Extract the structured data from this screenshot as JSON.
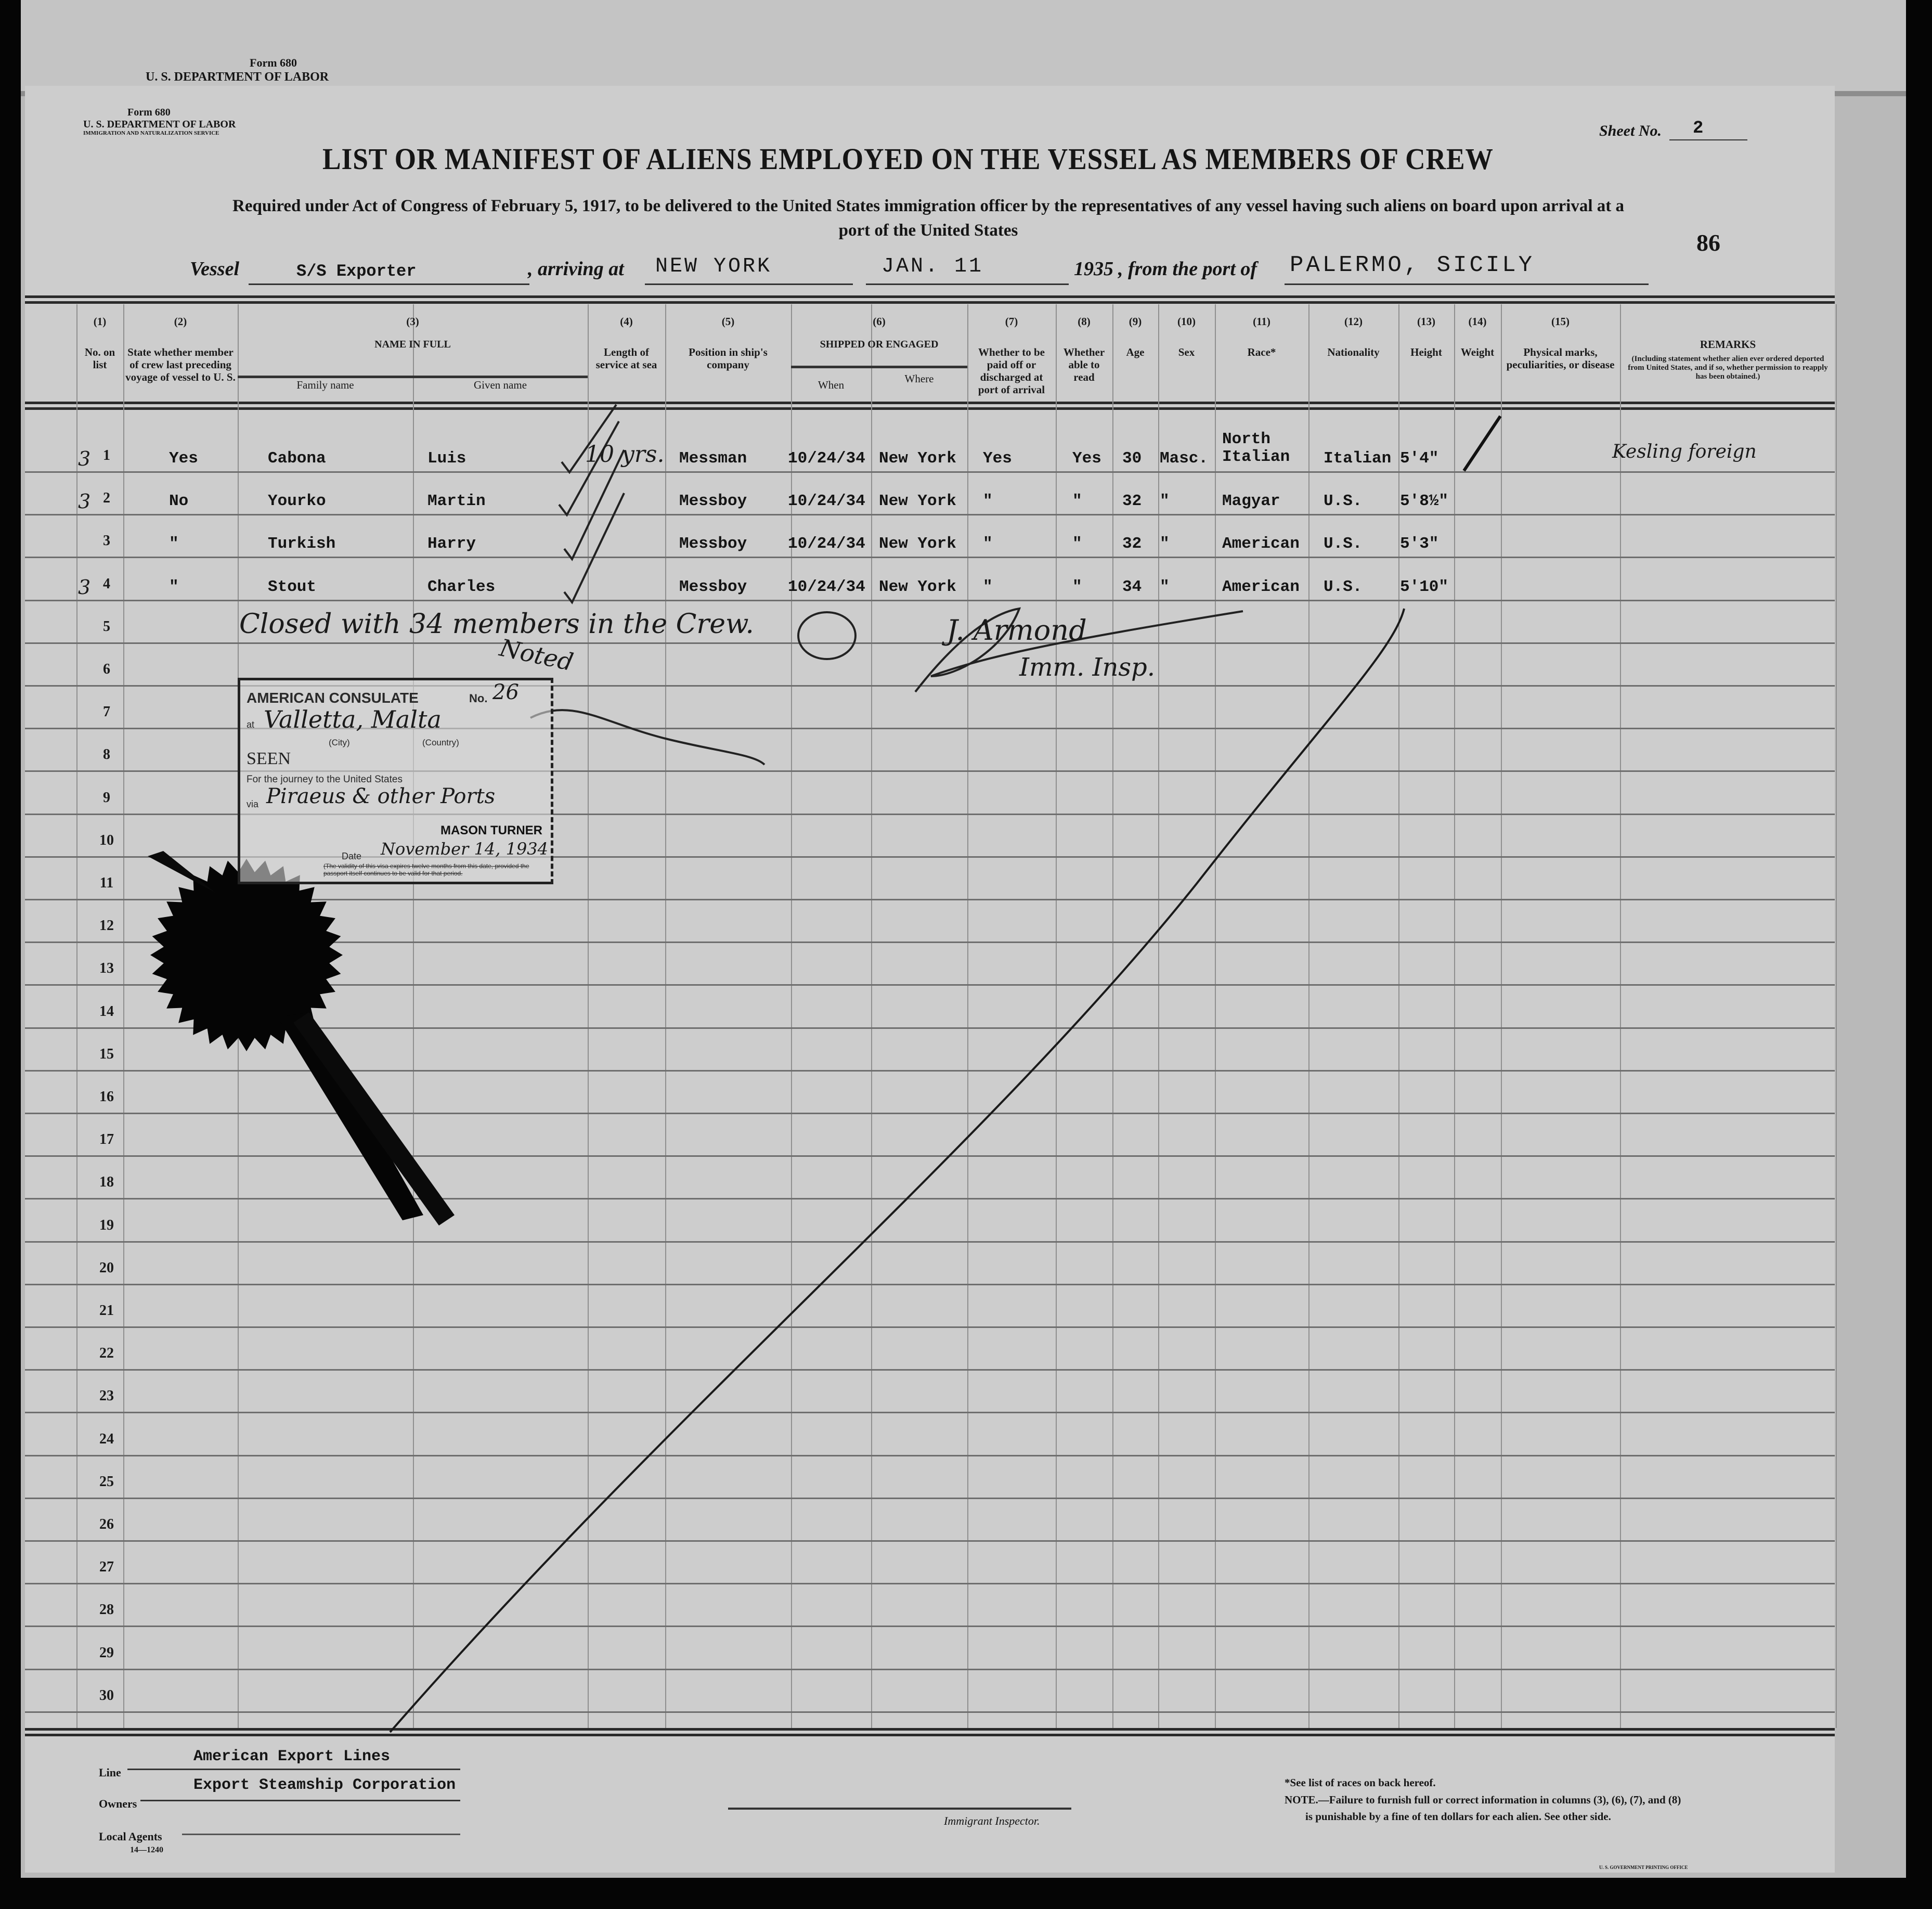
{
  "back_sheet": {
    "form": "Form 680",
    "department": "U. S. DEPARTMENT OF LABOR"
  },
  "form_header": {
    "form": "Form 680",
    "department": "U. S. DEPARTMENT OF LABOR",
    "service": "IMMIGRATION AND NATURALIZATION SERVICE",
    "sheet_label": "Sheet No.",
    "sheet_no": "2",
    "title": "LIST OR MANIFEST OF ALIENS EMPLOYED ON THE VESSEL AS MEMBERS OF CREW",
    "subtitle_1": "Required under Act of Congress of February 5, 1917, to be delivered to the United States immigration officer by the representatives of any vessel having such aliens on board upon arrival at a",
    "subtitle_2": "port of the United States",
    "page_number": "86"
  },
  "vessel_line": {
    "vessel_label": "Vessel",
    "vessel": "S/S Exporter",
    "arriving_label": ", arriving at",
    "arriving": "NEW YORK",
    "date": "JAN. 11",
    "year": "1935",
    "from_label": ", from the port of",
    "port": "PALERMO, SICILY"
  },
  "columns": [
    {
      "num": "(1)",
      "label": "No. on list"
    },
    {
      "num": "(2)",
      "label": "State whether member of crew last preceding voyage of vessel to U. S."
    },
    {
      "num": "(3)",
      "label": "NAME IN FULL",
      "sub": [
        "Family name",
        "Given name"
      ]
    },
    {
      "num": "(4)",
      "label": "Length of service at sea"
    },
    {
      "num": "(5)",
      "label": "Position in ship's company"
    },
    {
      "num": "(6)",
      "label": "SHIPPED OR ENGAGED",
      "sub": [
        "When",
        "Where"
      ]
    },
    {
      "num": "(7)",
      "label": "Whether to be paid off or discharged at port of arrival"
    },
    {
      "num": "(8)",
      "label": "Whether able to read"
    },
    {
      "num": "(9)",
      "label": "Age"
    },
    {
      "num": "(10)",
      "label": "Sex"
    },
    {
      "num": "(11)",
      "label": "Race*"
    },
    {
      "num": "(12)",
      "label": "Nationality"
    },
    {
      "num": "(13)",
      "label": "Height"
    },
    {
      "num": "(14)",
      "label": "Weight"
    },
    {
      "num": "(15)",
      "label": "Physical marks, peculiarities, or disease"
    },
    {
      "num": "",
      "label": "REMARKS",
      "note": "(Including statement whether alien ever ordered deported from United States, and if so, whether permission to reapply has been obtained.)"
    }
  ],
  "row_numbers": [
    "1",
    "2",
    "3",
    "4",
    "5",
    "6",
    "7",
    "8",
    "9",
    "10",
    "11",
    "12",
    "13",
    "14",
    "15",
    "16",
    "17",
    "18",
    "19",
    "20",
    "21",
    "22",
    "23",
    "24",
    "25",
    "26",
    "27",
    "28",
    "29",
    "30"
  ],
  "crew": [
    {
      "list_prefix": "3",
      "prev_voyage": "Yes",
      "family": "Cabona",
      "given": "Luis",
      "service": "10 yrs.",
      "position": "Messman",
      "when": "10/24/34",
      "where": "New York",
      "paid_off": "Yes",
      "read": "Yes",
      "age": "30",
      "sex": "Masc.",
      "race": "North Italian",
      "nationality": "Italian",
      "height": "5'4\"",
      "remarks": "Kesling foreign"
    },
    {
      "list_prefix": "3",
      "prev_voyage": "No",
      "family": "Yourko",
      "given": "Martin",
      "service": "",
      "position": "Messboy",
      "when": "10/24/34",
      "where": "New York",
      "paid_off": "\"",
      "read": "\"",
      "age": "32",
      "sex": "\"",
      "race": "Magyar",
      "nationality": "U.S.",
      "height": "5'8½\"",
      "remarks": ""
    },
    {
      "list_prefix": "",
      "prev_voyage": "\"",
      "family": "Turkish",
      "given": "Harry",
      "service": "",
      "position": "Messboy",
      "when": "10/24/34",
      "where": "New York",
      "paid_off": "\"",
      "read": "\"",
      "age": "32",
      "sex": "\"",
      "race": "American",
      "nationality": "U.S.",
      "height": "5'3\"",
      "remarks": ""
    },
    {
      "list_prefix": "3",
      "prev_voyage": "\"",
      "family": "Stout",
      "given": "Charles",
      "service": "",
      "position": "Messboy",
      "when": "10/24/34",
      "where": "New York",
      "paid_off": "\"",
      "read": "\"",
      "age": "34",
      "sex": "\"",
      "race": "American",
      "nationality": "U.S.",
      "height": "5'10\"",
      "remarks": ""
    }
  ],
  "annotations": {
    "closed_note": "Closed with 34 members in the Crew.",
    "noted": "Noted",
    "inspector_sig": "J. Armond",
    "inspector_title": "Imm. Insp."
  },
  "consulate_stamp": {
    "heading": "AMERICAN CONSULATE",
    "no_label": "No.",
    "no": "26",
    "at_label": "at",
    "city_country": "Valletta, Malta",
    "city_hint": "(City)",
    "country_hint": "(Country)",
    "seen": "SEEN",
    "journey": "For the journey to the United States",
    "via_label": "via",
    "via": "Piraeus & other Ports",
    "consul": "MASON TURNER",
    "date_label": "Date",
    "date": "November 14, 1934",
    "validity": "(The validity of this visa expires twelve months from this date, provided the passport itself continues to be valid for that period."
  },
  "footer": {
    "line_label": "Line",
    "line": "American Export Lines",
    "owners_label": "Owners",
    "owners": "Export Steamship Corporation",
    "agents_label": "Local Agents",
    "form_code": "14—1240",
    "inspector_label": "Immigrant Inspector.",
    "note_1": "*See list of races on back hereof.",
    "note_2": "NOTE.—Failure to furnish full or correct information in columns (3), (6), (7), and (8)",
    "note_3": "is punishable by a fine of ten dollars for each alien.  See other side.",
    "printer": "U. S. GOVERNMENT PRINTING OFFICE"
  },
  "colors": {
    "paper": "#cdcdcd",
    "ink": "#151515",
    "background": "#050505"
  }
}
